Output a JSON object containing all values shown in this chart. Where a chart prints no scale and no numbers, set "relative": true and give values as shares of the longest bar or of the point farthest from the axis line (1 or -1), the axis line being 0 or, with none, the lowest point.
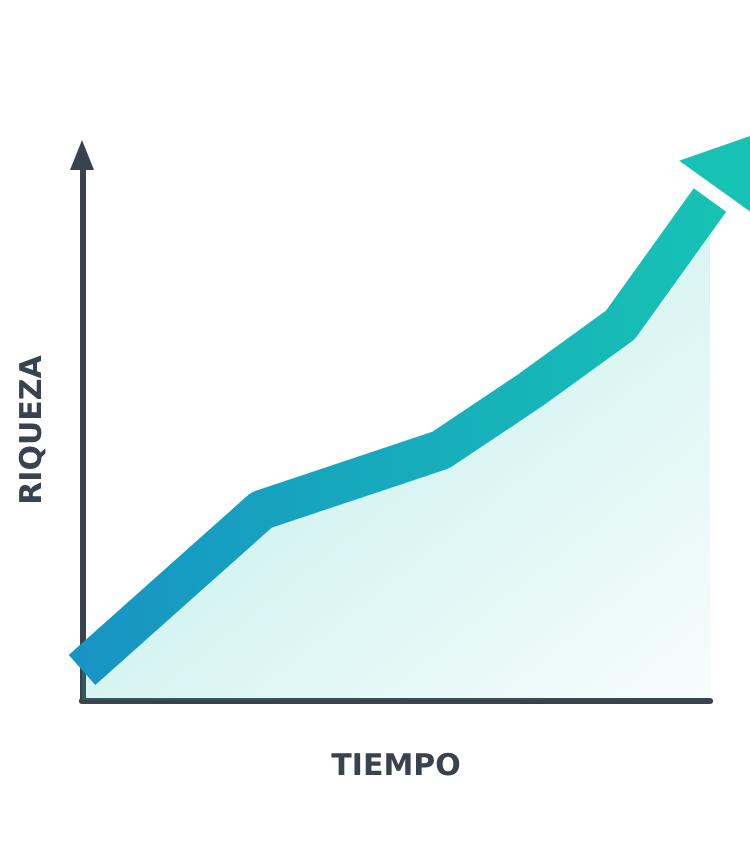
{
  "chart_data": {
    "type": "area",
    "relative": true,
    "xlabel": "TIEMPO",
    "ylabel": "RIQUEZA",
    "categories": [
      null,
      null,
      null,
      null,
      null,
      null,
      null,
      null
    ],
    "values": [
      0.06,
      0.22,
      0.38,
      0.44,
      0.5,
      0.62,
      0.75,
      1
    ],
    "color": "#16c2b4",
    "grid": false,
    "marker": "none",
    "line_style": "solid"
  }
}
